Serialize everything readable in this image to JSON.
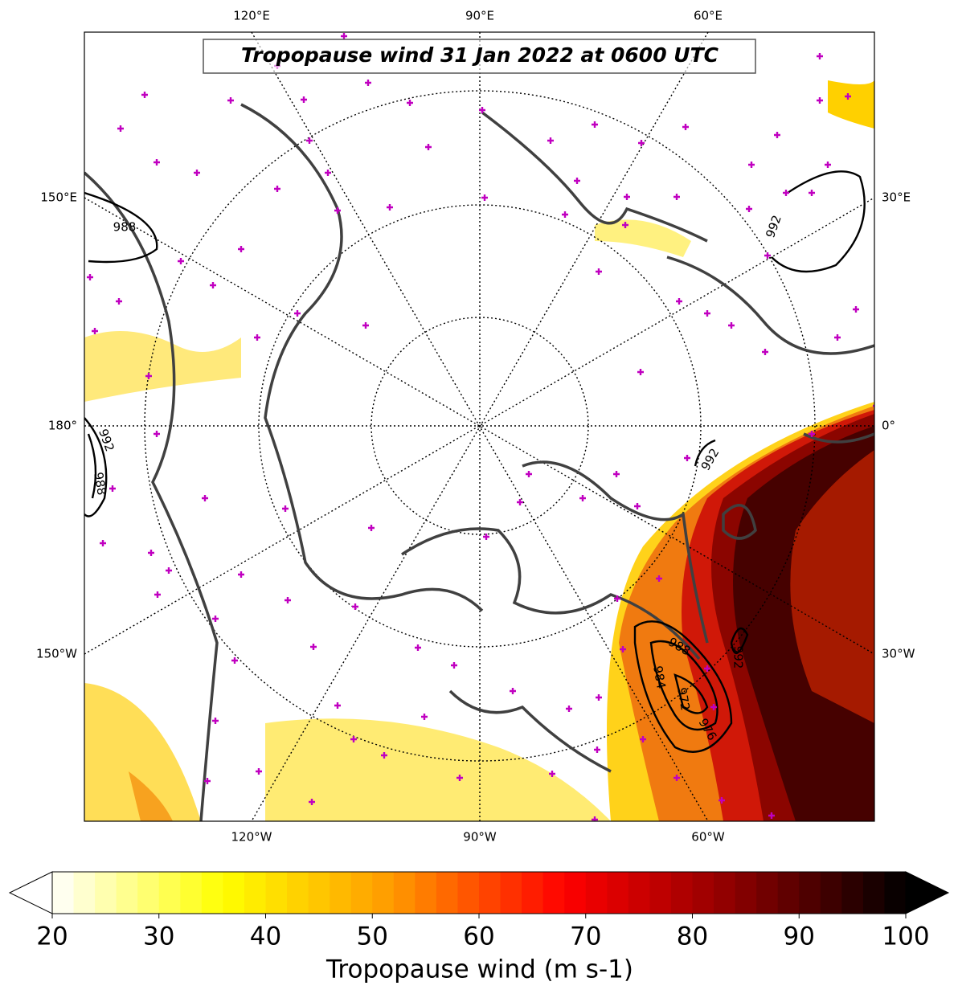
{
  "title": "Tropopause wind 31 Jan 2022 at 0600 UTC",
  "map": {
    "lon_labels_top": [
      "120°E",
      "90°E",
      "60°E"
    ],
    "lon_labels_bottom": [
      "120°W",
      "90°W",
      "60°W"
    ],
    "lon_labels_left": [
      "150°E",
      "180°",
      "150°W"
    ],
    "lon_labels_right": [
      "30°E",
      "0°",
      "30°W"
    ],
    "contour_labels": [
      988,
      992,
      988,
      992,
      992,
      988,
      984,
      972,
      976,
      992
    ]
  },
  "colorbar": {
    "label": "Tropopause wind (m s-1)",
    "lim": [
      20,
      100
    ],
    "step": 2,
    "ticks": [
      20,
      30,
      40,
      50,
      60,
      70,
      80,
      90,
      100
    ],
    "colors": [
      "#ffffff",
      "#ffff00",
      "#ff9900",
      "#ff0000",
      "#8b0000",
      "#000000"
    ]
  }
}
